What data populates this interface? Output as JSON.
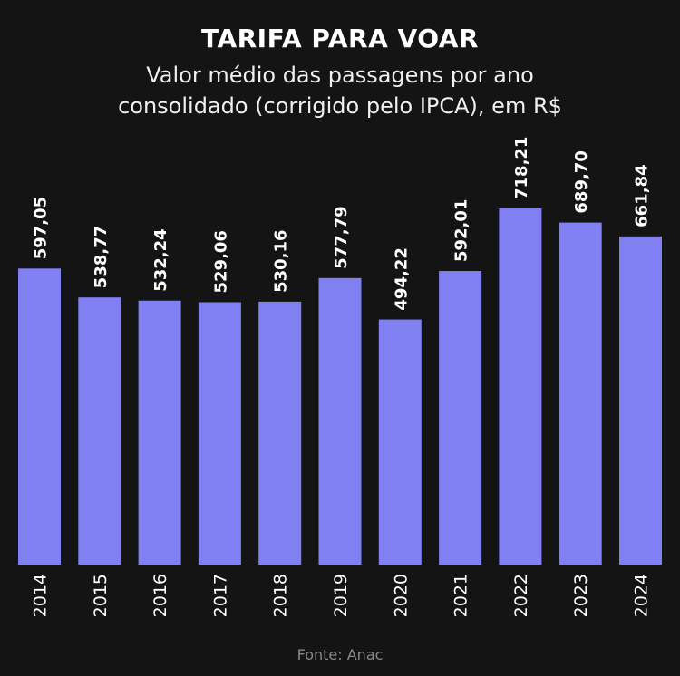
{
  "chart_data": {
    "type": "bar",
    "title": "TARIFA PARA VOAR",
    "subtitle_line1": "Valor médio das passagens por ano",
    "subtitle_line2": "consolidado (corrigido pelo IPCA), em R$",
    "categories": [
      "2014",
      "2015",
      "2016",
      "2017",
      "2018",
      "2019",
      "2020",
      "2021",
      "2022",
      "2023",
      "2024"
    ],
    "values": [
      597.05,
      538.77,
      532.24,
      529.06,
      530.16,
      577.79,
      494.22,
      592.01,
      718.21,
      689.7,
      661.84
    ],
    "labels": [
      "597,05",
      "538,77",
      "532,24",
      "529,06",
      "530,16",
      "577,79",
      "494,22",
      "592,01",
      "718,21",
      "689,70",
      "661,84"
    ],
    "xlabel": "",
    "ylabel": "",
    "ylim": [
      0,
      718.21
    ],
    "grid": false,
    "bar_color": "#8080f2",
    "source": "Fonte: Anac"
  }
}
